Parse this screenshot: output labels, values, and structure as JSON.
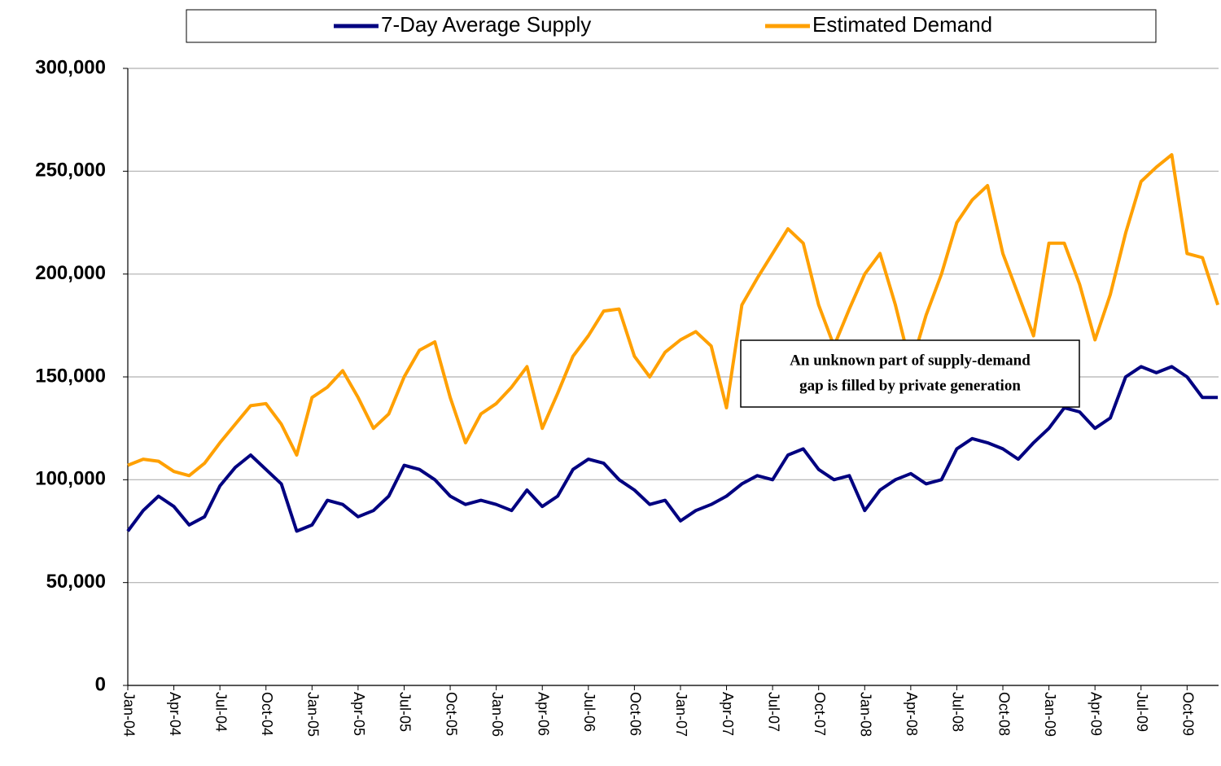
{
  "chart_data": {
    "type": "line",
    "legend_position": "top",
    "grid": true,
    "annotation": [
      "An unknown part of supply-demand",
      "gap is filled by private generation"
    ],
    "categories": [
      "Jan-04",
      null,
      null,
      "Apr-04",
      null,
      null,
      "Jul-04",
      null,
      null,
      "Oct-04",
      null,
      null,
      "Jan-05",
      null,
      null,
      "Apr-05",
      null,
      null,
      "Jul-05",
      null,
      null,
      "Oct-05",
      null,
      null,
      "Jan-06",
      null,
      null,
      "Apr-06",
      null,
      null,
      "Jul-06",
      null,
      null,
      "Oct-06",
      null,
      null,
      "Jan-07",
      null,
      null,
      "Apr-07",
      null,
      null,
      "Jul-07",
      null,
      null,
      "Oct-07",
      null,
      null,
      "Jan-08",
      null,
      null,
      "Apr-08",
      null,
      null,
      "Jul-08",
      null,
      null,
      "Oct-08",
      null,
      null,
      "Jan-09",
      null,
      null,
      "Apr-09",
      null,
      null,
      "Jul-09",
      null,
      null,
      "Oct-09",
      null,
      null
    ],
    "series": [
      {
        "name": "7-Day Average Supply",
        "color": "#000080",
        "values": [
          75000,
          85000,
          92000,
          87000,
          78000,
          82000,
          97000,
          106000,
          112000,
          105000,
          98000,
          75000,
          78000,
          90000,
          88000,
          82000,
          85000,
          92000,
          107000,
          105000,
          100000,
          92000,
          88000,
          90000,
          88000,
          85000,
          95000,
          87000,
          92000,
          105000,
          110000,
          108000,
          100000,
          95000,
          88000,
          90000,
          80000,
          85000,
          88000,
          92000,
          98000,
          102000,
          100000,
          112000,
          115000,
          105000,
          100000,
          102000,
          85000,
          95000,
          100000,
          103000,
          98000,
          100000,
          115000,
          120000,
          118000,
          115000,
          110000,
          118000,
          125000,
          135000,
          133000,
          125000,
          130000,
          150000,
          155000,
          152000,
          155000,
          150000,
          140000,
          140000
        ]
      },
      {
        "name": "Estimated Demand",
        "color": "#FFA000",
        "values": [
          107000,
          110000,
          109000,
          104000,
          102000,
          108000,
          118000,
          127000,
          136000,
          137000,
          127000,
          112000,
          140000,
          145000,
          153000,
          140000,
          125000,
          132000,
          150000,
          163000,
          167000,
          140000,
          118000,
          132000,
          137000,
          145000,
          155000,
          125000,
          142000,
          160000,
          170000,
          182000,
          183000,
          160000,
          150000,
          162000,
          168000,
          172000,
          165000,
          135000,
          185000,
          198000,
          210000,
          222000,
          215000,
          185000,
          165000,
          183000,
          200000,
          210000,
          185000,
          155000,
          180000,
          200000,
          225000,
          236000,
          243000,
          210000,
          190000,
          170000,
          215000,
          215000,
          195000,
          168000,
          190000,
          220000,
          245000,
          252000,
          258000,
          210000,
          208000,
          185000
        ]
      }
    ],
    "ylim": [
      0,
      300000
    ],
    "yticks": [
      0,
      {
        "value": 50000,
        "label": "50,000"
      },
      {
        "value": 100000,
        "label": "100,000"
      },
      {
        "value": 150000,
        "label": "150,000"
      },
      {
        "value": 200000,
        "label": "200,000"
      },
      {
        "value": 250000,
        "label": "250,000"
      },
      {
        "value": 300000,
        "label": "300,000"
      }
    ]
  }
}
